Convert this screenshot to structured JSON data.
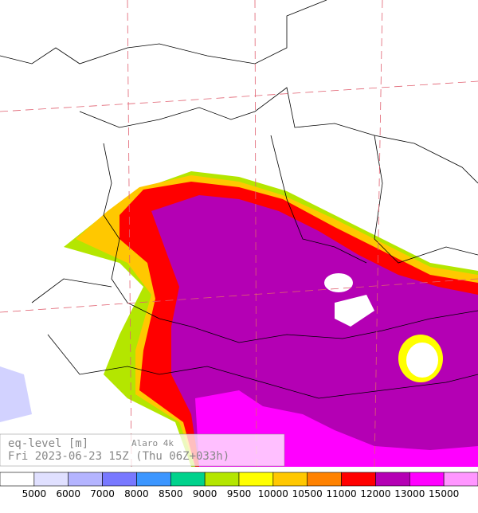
{
  "info": {
    "title": "eq-level [m]",
    "model": "Alaro 4k",
    "valid": "Fri 2023-06-23 15Z (Thu 06Z+033h)"
  },
  "legend": {
    "levels": [
      5000,
      6000,
      7000,
      8000,
      8500,
      9000,
      9500,
      10000,
      10500,
      11000,
      12000,
      13000,
      15000
    ],
    "colors": [
      "#ffffff",
      "#e0e0ff",
      "#b4b4ff",
      "#7878ff",
      "#3c96ff",
      "#00d28c",
      "#b4e600",
      "#ffff00",
      "#ffc800",
      "#ff8200",
      "#ff0000",
      "#b400b4",
      "#ff00ff",
      "#ff96ff"
    ]
  }
}
